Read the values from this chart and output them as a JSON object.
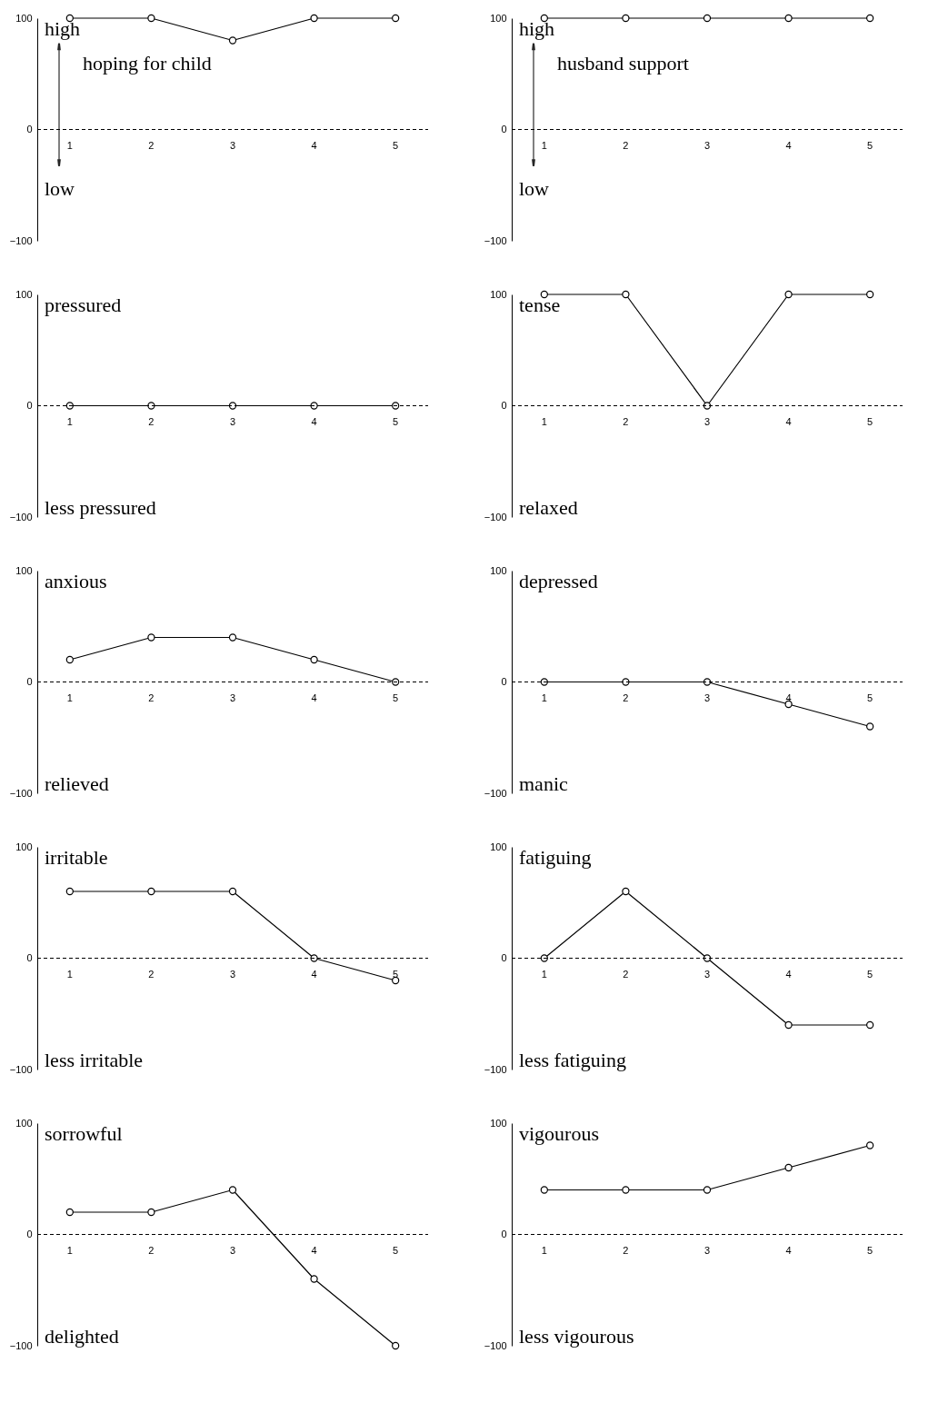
{
  "chart_data": [
    {
      "type": "line",
      "categories": [
        "1",
        "2",
        "3",
        "4",
        "5"
      ],
      "values": [
        100,
        100,
        80,
        100,
        100
      ],
      "ylim": [
        -100,
        100
      ],
      "yticks": [
        -100,
        0,
        100
      ],
      "annotations": [
        "high",
        "hoping for child",
        "low"
      ],
      "ref_lines": [
        {
          "axis": "y",
          "value": 0,
          "line_style": "dashed"
        }
      ],
      "marker": "circle",
      "grid": false,
      "color": "#000000"
    },
    {
      "type": "line",
      "categories": [
        "1",
        "2",
        "3",
        "4",
        "5"
      ],
      "values": [
        100,
        100,
        100,
        100,
        100
      ],
      "ylim": [
        -100,
        100
      ],
      "yticks": [
        -100,
        0,
        100
      ],
      "annotations": [
        "high",
        "husband support",
        "low"
      ],
      "ref_lines": [
        {
          "axis": "y",
          "value": 0,
          "line_style": "dashed"
        }
      ],
      "marker": "circle",
      "grid": false,
      "color": "#000000"
    },
    {
      "type": "line",
      "categories": [
        "1",
        "2",
        "3",
        "4",
        "5"
      ],
      "values": [
        0,
        0,
        0,
        0,
        0
      ],
      "ylim": [
        -100,
        100
      ],
      "yticks": [
        -100,
        0,
        100
      ],
      "annotations": [
        "pressured",
        "less pressured"
      ],
      "ref_lines": [
        {
          "axis": "y",
          "value": 0,
          "line_style": "dashed"
        }
      ],
      "marker": "circle",
      "grid": false,
      "color": "#000000"
    },
    {
      "type": "line",
      "categories": [
        "1",
        "2",
        "3",
        "4",
        "5"
      ],
      "values": [
        100,
        100,
        0,
        100,
        100
      ],
      "ylim": [
        -100,
        100
      ],
      "yticks": [
        -100,
        0,
        100
      ],
      "annotations": [
        "tense",
        "relaxed"
      ],
      "ref_lines": [
        {
          "axis": "y",
          "value": 0,
          "line_style": "dashed"
        }
      ],
      "marker": "circle",
      "grid": false,
      "color": "#000000"
    },
    {
      "type": "line",
      "categories": [
        "1",
        "2",
        "3",
        "4",
        "5"
      ],
      "values": [
        20,
        40,
        40,
        20,
        0
      ],
      "ylim": [
        -100,
        100
      ],
      "yticks": [
        -100,
        0,
        100
      ],
      "annotations": [
        "anxious",
        "relieved"
      ],
      "ref_lines": [
        {
          "axis": "y",
          "value": 0,
          "line_style": "dashed"
        }
      ],
      "marker": "circle",
      "grid": false,
      "color": "#000000"
    },
    {
      "type": "line",
      "categories": [
        "1",
        "2",
        "3",
        "4",
        "5"
      ],
      "values": [
        0,
        0,
        0,
        -20,
        -40
      ],
      "ylim": [
        -100,
        100
      ],
      "yticks": [
        -100,
        0,
        100
      ],
      "annotations": [
        "depressed",
        "manic"
      ],
      "ref_lines": [
        {
          "axis": "y",
          "value": 0,
          "line_style": "dashed"
        }
      ],
      "marker": "circle",
      "grid": false,
      "color": "#000000"
    },
    {
      "type": "line",
      "categories": [
        "1",
        "2",
        "3",
        "4",
        "5"
      ],
      "values": [
        60,
        60,
        60,
        0,
        -20
      ],
      "ylim": [
        -100,
        100
      ],
      "yticks": [
        -100,
        0,
        100
      ],
      "annotations": [
        "irritable",
        "less irritable"
      ],
      "ref_lines": [
        {
          "axis": "y",
          "value": 0,
          "line_style": "dashed"
        }
      ],
      "marker": "circle",
      "grid": false,
      "color": "#000000"
    },
    {
      "type": "line",
      "categories": [
        "1",
        "2",
        "3",
        "4",
        "5"
      ],
      "values": [
        0,
        60,
        0,
        -60,
        -60
      ],
      "ylim": [
        -100,
        100
      ],
      "yticks": [
        -100,
        0,
        100
      ],
      "annotations": [
        "fatiguing",
        "less fatiguing"
      ],
      "ref_lines": [
        {
          "axis": "y",
          "value": 0,
          "line_style": "dashed"
        }
      ],
      "marker": "circle",
      "grid": false,
      "color": "#000000"
    },
    {
      "type": "line",
      "categories": [
        "1",
        "2",
        "3",
        "4",
        "5"
      ],
      "values": [
        20,
        20,
        40,
        -40,
        -100
      ],
      "ylim": [
        -100,
        100
      ],
      "yticks": [
        -100,
        0,
        100
      ],
      "annotations": [
        "sorrowful",
        "delighted"
      ],
      "ref_lines": [
        {
          "axis": "y",
          "value": 0,
          "line_style": "dashed"
        }
      ],
      "marker": "circle",
      "grid": false,
      "color": "#000000"
    },
    {
      "type": "line",
      "categories": [
        "1",
        "2",
        "3",
        "4",
        "5"
      ],
      "values": [
        40,
        40,
        40,
        60,
        80
      ],
      "ylim": [
        -100,
        100
      ],
      "yticks": [
        -100,
        0,
        100
      ],
      "annotations": [
        "vigourous",
        "less vigourous"
      ],
      "ref_lines": [
        {
          "axis": "y",
          "value": 0,
          "line_style": "dashed"
        }
      ],
      "marker": "circle",
      "grid": false,
      "color": "#000000"
    }
  ]
}
